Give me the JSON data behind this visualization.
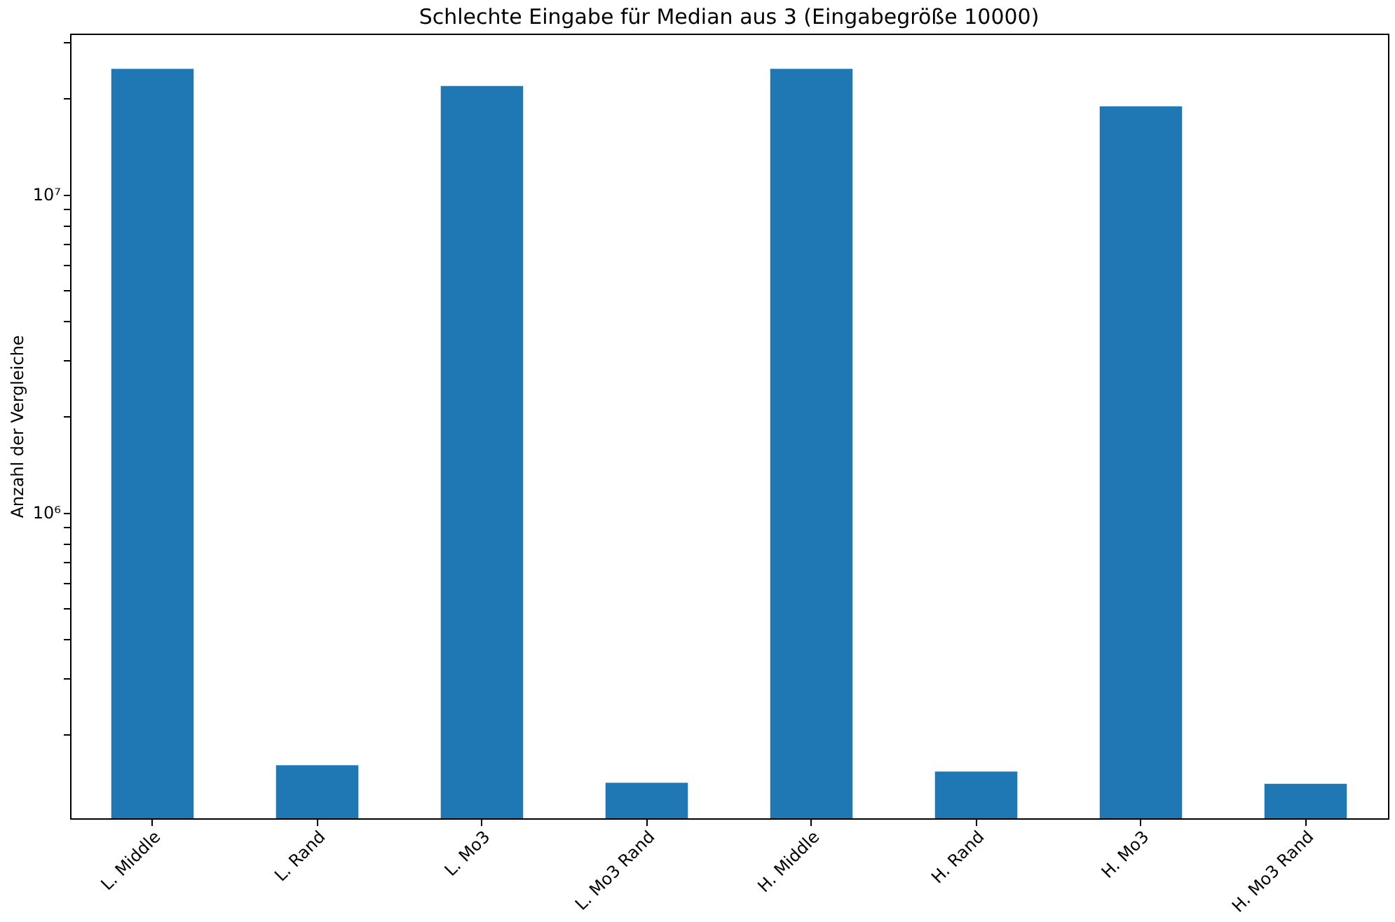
{
  "chart_data": {
    "type": "bar",
    "title": "Schlechte Eingabe für Median aus 3 (Eingabegröße 10000)",
    "ylabel": "Anzahl der Vergleiche",
    "categories": [
      "L. Middle",
      "L. Rand",
      "L. Mo3",
      "L. Mo3 Rand",
      "H. Middle",
      "H. Rand",
      "H. Mo3",
      "H. Mo3 Rand"
    ],
    "values": [
      24800000,
      160000,
      21900000,
      141000,
      24800000,
      153000,
      18900000,
      140000
    ],
    "color": "#1f77b4",
    "log": true,
    "ylim": [
      109000,
      32000000
    ],
    "yticks": [
      {
        "value": 200000,
        "label": null
      },
      {
        "value": 300000,
        "label": null
      },
      {
        "value": 400000,
        "label": null
      },
      {
        "value": 500000,
        "label": null
      },
      {
        "value": 600000,
        "label": null
      },
      {
        "value": 700000,
        "label": null
      },
      {
        "value": 800000,
        "label": null
      },
      {
        "value": 900000,
        "label": null
      },
      {
        "value": 1000000,
        "label": "10⁶"
      },
      {
        "value": 2000000,
        "label": null
      },
      {
        "value": 3000000,
        "label": null
      },
      {
        "value": 4000000,
        "label": null
      },
      {
        "value": 5000000,
        "label": null
      },
      {
        "value": 6000000,
        "label": null
      },
      {
        "value": 7000000,
        "label": null
      },
      {
        "value": 8000000,
        "label": null
      },
      {
        "value": 9000000,
        "label": null
      },
      {
        "value": 10000000,
        "label": "10⁷"
      },
      {
        "value": 20000000,
        "label": null
      },
      {
        "value": 30000000,
        "label": null
      }
    ],
    "grid": false
  }
}
